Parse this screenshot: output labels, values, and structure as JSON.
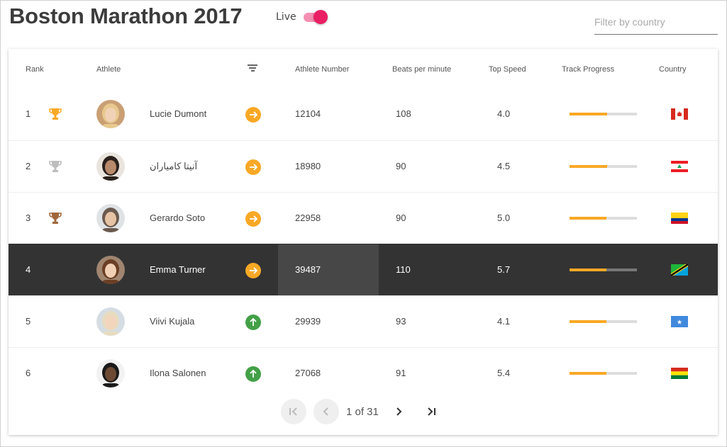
{
  "header": {
    "title": "Boston Marathon 2017",
    "live_label": "Live",
    "live_on": true,
    "filter_placeholder": "Filter by country",
    "filter_value": ""
  },
  "table": {
    "columns": {
      "rank": "Rank",
      "athlete": "Athlete",
      "athlete_number": "Athlete Number",
      "bpm": "Beats per minute",
      "top_speed": "Top Speed",
      "track_progress": "Track Progress",
      "country": "Country"
    },
    "rows": [
      {
        "rank": "1",
        "trophy": "gold-trophy-icon",
        "name": "Lucie Dumont",
        "trend": "arrow-right-icon",
        "number": "12104",
        "bpm": "108",
        "speed": "4.0",
        "progress": 0.56,
        "country_flag": "canada-flag-icon",
        "selected": false
      },
      {
        "rank": "2",
        "trophy": "silver-trophy-icon",
        "name": "آنیتا کامیاران",
        "trend": "arrow-right-icon",
        "number": "18980",
        "bpm": "90",
        "speed": "4.5",
        "progress": 0.56,
        "country_flag": "lebanon-flag-icon",
        "selected": false
      },
      {
        "rank": "3",
        "trophy": "bronze-trophy-icon",
        "name": "Gerardo Soto",
        "trend": "arrow-right-icon",
        "number": "22958",
        "bpm": "90",
        "speed": "5.0",
        "progress": 0.55,
        "country_flag": "colombia-flag-icon",
        "selected": false
      },
      {
        "rank": "4",
        "trophy": "",
        "name": "Emma Turner",
        "trend": "arrow-right-icon",
        "number": "39487",
        "bpm": "110",
        "speed": "5.7",
        "progress": 0.55,
        "country_flag": "tanzania-flag-icon",
        "selected": true
      },
      {
        "rank": "5",
        "trophy": "",
        "name": "Viivi Kujala",
        "trend": "arrow-up-icon",
        "number": "29939",
        "bpm": "93",
        "speed": "4.1",
        "progress": 0.55,
        "country_flag": "somalia-flag-icon",
        "selected": false
      },
      {
        "rank": "6",
        "trophy": "",
        "name": "Ilona Salonen",
        "trend": "arrow-up-icon",
        "number": "27068",
        "bpm": "91",
        "speed": "5.4",
        "progress": 0.55,
        "country_flag": "bolivia-flag-icon",
        "selected": false
      }
    ]
  },
  "pager": {
    "label": "1 of 31"
  },
  "colors": {
    "accent_pink": "#e91e63",
    "progress_fill": "#f9a825",
    "trend_up": "#43a047",
    "selected_row": "#333333"
  }
}
